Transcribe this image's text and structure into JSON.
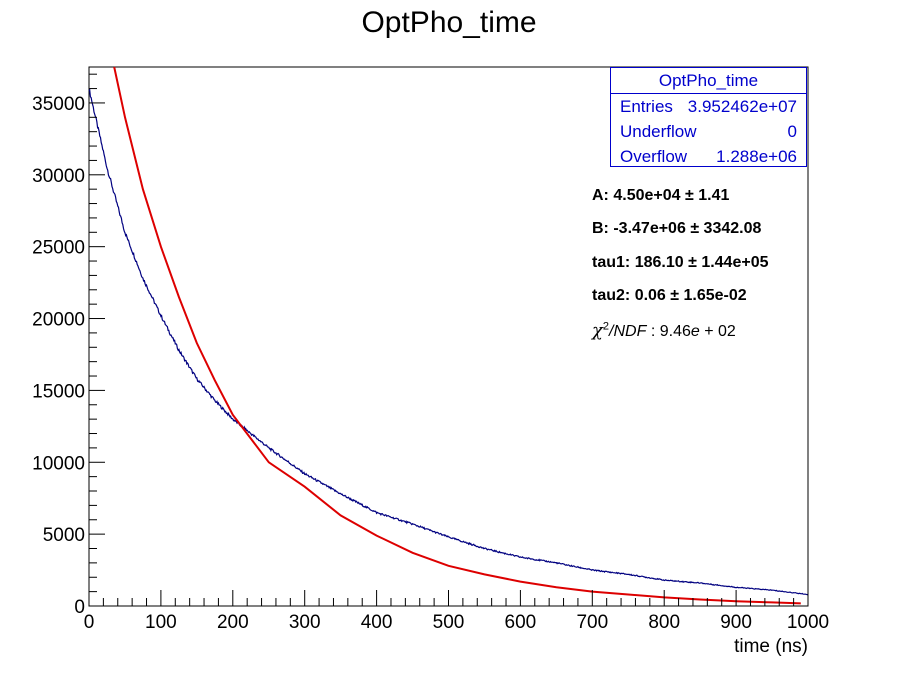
{
  "chart_data": {
    "type": "line",
    "title": "OptPho_time",
    "xlabel": "time (ns)",
    "ylabel": "",
    "xlim": [
      0,
      1000
    ],
    "ylim": [
      0,
      37500
    ],
    "x_ticks": [
      0,
      100,
      200,
      300,
      400,
      500,
      600,
      700,
      800,
      900,
      1000
    ],
    "y_ticks": [
      0,
      5000,
      10000,
      15000,
      20000,
      25000,
      30000,
      35000
    ],
    "series": [
      {
        "color": "#000080",
        "style": "histogram",
        "x": [
          0,
          25,
          50,
          75,
          100,
          125,
          150,
          175,
          200,
          250,
          300,
          350,
          400,
          450,
          500,
          550,
          600,
          650,
          700,
          750,
          800,
          850,
          900,
          950,
          1000
        ],
        "values": [
          36000,
          30500,
          26000,
          22800,
          20200,
          17800,
          15800,
          14300,
          13000,
          11000,
          9200,
          7800,
          6500,
          5700,
          4800,
          4000,
          3400,
          3000,
          2500,
          2200,
          1800,
          1600,
          1300,
          1100,
          800
        ]
      },
      {
        "color": "#dd0000",
        "style": "fit",
        "x": [
          35,
          50,
          75,
          100,
          125,
          150,
          175,
          200,
          250,
          300,
          350,
          400,
          450,
          500,
          550,
          600,
          650,
          700,
          750,
          800,
          850,
          900,
          950,
          990
        ],
        "values": [
          37500,
          34000,
          29000,
          25000,
          21500,
          18300,
          15700,
          13300,
          10000,
          8300,
          6300,
          4900,
          3700,
          2800,
          2200,
          1700,
          1300,
          1000,
          800,
          600,
          450,
          330,
          250,
          180
        ]
      }
    ],
    "grid": false,
    "legend": "none"
  },
  "stats": {
    "title": "OptPho_time",
    "rows": [
      {
        "key": "Entries",
        "value": "3.952462e+07"
      },
      {
        "key": "Underflow",
        "value": "0"
      },
      {
        "key": "Overflow",
        "value": "1.288e+06"
      }
    ],
    "border_color": "#0000cc"
  },
  "fit": {
    "params": [
      {
        "name": "A:",
        "value": "4.50e+04",
        "pm": "±",
        "error": "1.41"
      },
      {
        "name": "B:",
        "value": "-3.47e+06",
        "pm": "±",
        "error": "3342.08"
      },
      {
        "name": "tau1:",
        "value": "186.10",
        "pm": "±",
        "error": "1.44e+05"
      },
      {
        "name": "tau2:",
        "value": "0.06",
        "pm": "±",
        "error": "1.65e-02"
      }
    ],
    "chi": {
      "symbol": "χ",
      "sup": "2",
      "ndf": "/NDF",
      "sep": " : ",
      "mantissa": "9.46",
      "e": "e",
      "plus": " + ",
      "exp": "02"
    }
  }
}
